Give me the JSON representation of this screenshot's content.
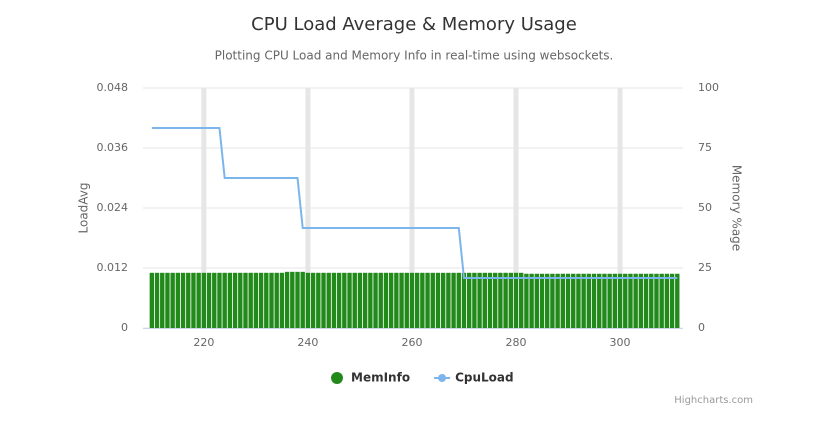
{
  "chart_data": {
    "type": "combo",
    "title": "CPU Load Average & Memory Usage",
    "subtitle": "Plotting CPU Load and Memory Info in real-time using websockets.",
    "y_label": "LoadAvg",
    "y2_label": "Memory %age",
    "credits": "Highcharts.com",
    "xlim": [
      208.3,
      312.1
    ],
    "xticks": [
      220,
      240,
      260,
      280,
      300
    ],
    "ylim": [
      0,
      0.048
    ],
    "yticks": [
      0,
      0.012,
      0.024,
      0.036,
      0.048
    ],
    "y2lim": [
      0,
      100
    ],
    "y2ticks": [
      0,
      25,
      50,
      75,
      100
    ],
    "grid": true,
    "legend": "bottom",
    "x": [
      210,
      211,
      212,
      213,
      214,
      215,
      216,
      217,
      218,
      219,
      220,
      221,
      222,
      223,
      224,
      225,
      226,
      227,
      228,
      229,
      230,
      231,
      232,
      233,
      234,
      235,
      236,
      237,
      238,
      239,
      240,
      241,
      242,
      243,
      244,
      245,
      246,
      247,
      248,
      249,
      250,
      251,
      252,
      253,
      254,
      255,
      256,
      257,
      258,
      259,
      260,
      261,
      262,
      263,
      264,
      265,
      266,
      267,
      268,
      269,
      270,
      271,
      272,
      273,
      274,
      275,
      276,
      277,
      278,
      279,
      280,
      281,
      282,
      283,
      284,
      285,
      286,
      287,
      288,
      289,
      290,
      291,
      292,
      293,
      294,
      295,
      296,
      297,
      298,
      299,
      300,
      301,
      302,
      303,
      304,
      305,
      306,
      307,
      308,
      309,
      310,
      311
    ],
    "series": [
      {
        "name": "MemInfo",
        "type": "column",
        "axis": "y2",
        "color": "#218a1a",
        "values": [
          23,
          23,
          23,
          23,
          23,
          23,
          23,
          23,
          23,
          23,
          23,
          23,
          23,
          23,
          23,
          23,
          23,
          23,
          23,
          23,
          23,
          23,
          23,
          23,
          23,
          23,
          23.4,
          23.4,
          23.4,
          23.4,
          23,
          23,
          23,
          23,
          23,
          23,
          23,
          23,
          23,
          23,
          23,
          23,
          23,
          23,
          23,
          23,
          23,
          23,
          23,
          23,
          23,
          23,
          23,
          23,
          23,
          23,
          23,
          23,
          23,
          23,
          23,
          23,
          23,
          23,
          23,
          23,
          23,
          23,
          23,
          23,
          23,
          23,
          22.6,
          22.6,
          22.6,
          22.6,
          22.6,
          22.6,
          22.6,
          22.6,
          22.6,
          22.6,
          22.6,
          22.6,
          22.6,
          22.6,
          22.6,
          22.6,
          22.6,
          22.6,
          22.6,
          22.6,
          22.6,
          22.6,
          22.6,
          22.6,
          22.6,
          22.6,
          22.6,
          22.6,
          22.6,
          22.6
        ]
      },
      {
        "name": "CpuLoad",
        "type": "line",
        "axis": "y",
        "color": "#7cb5ec",
        "values": [
          0.04,
          0.04,
          0.04,
          0.04,
          0.04,
          0.04,
          0.04,
          0.04,
          0.04,
          0.04,
          0.04,
          0.04,
          0.04,
          0.04,
          0.03,
          0.03,
          0.03,
          0.03,
          0.03,
          0.03,
          0.03,
          0.03,
          0.03,
          0.03,
          0.03,
          0.03,
          0.03,
          0.03,
          0.03,
          0.02,
          0.02,
          0.02,
          0.02,
          0.02,
          0.02,
          0.02,
          0.02,
          0.02,
          0.02,
          0.02,
          0.02,
          0.02,
          0.02,
          0.02,
          0.02,
          0.02,
          0.02,
          0.02,
          0.02,
          0.02,
          0.02,
          0.02,
          0.02,
          0.02,
          0.02,
          0.02,
          0.02,
          0.02,
          0.02,
          0.02,
          0.01,
          0.01,
          0.01,
          0.01,
          0.01,
          0.01,
          0.01,
          0.01,
          0.01,
          0.01,
          0.01,
          0.01,
          0.01,
          0.01,
          0.01,
          0.01,
          0.01,
          0.01,
          0.01,
          0.01,
          0.01,
          0.01,
          0.01,
          0.01,
          0.01,
          0.01,
          0.01,
          0.01,
          0.01,
          0.01,
          0.01,
          0.01,
          0.01,
          0.01,
          0.01,
          0.01,
          0.01,
          0.01,
          0.01,
          0.01,
          0.01,
          0.01
        ]
      }
    ]
  }
}
